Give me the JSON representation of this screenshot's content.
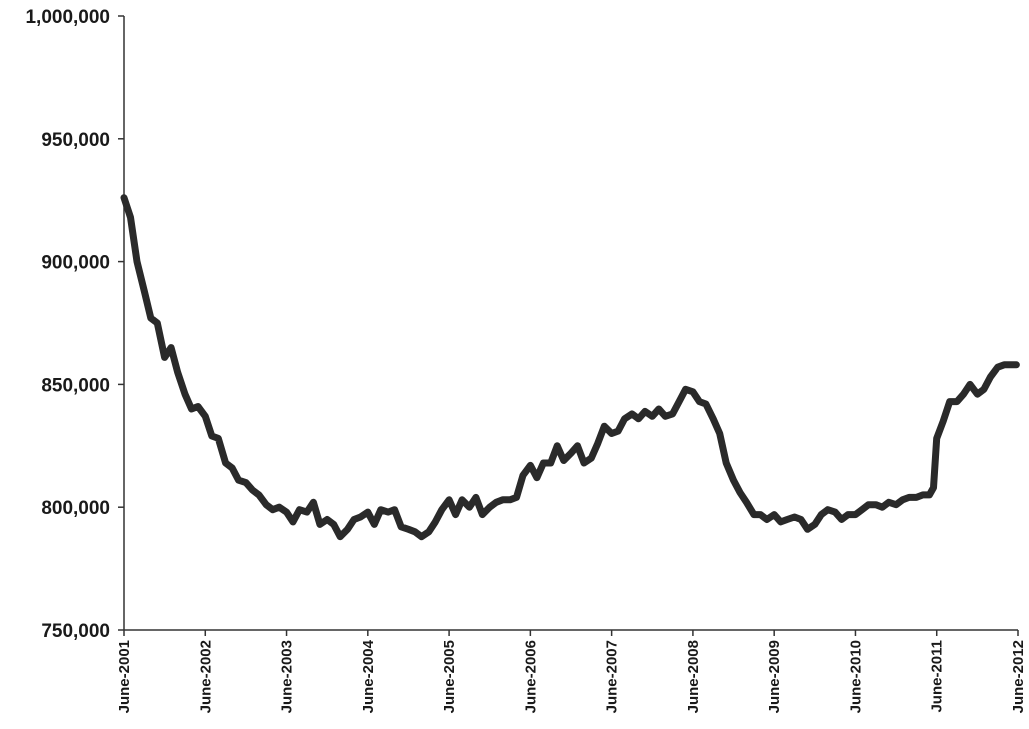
{
  "chart_data": {
    "type": "line",
    "title": "",
    "xlabel": "",
    "ylabel": "",
    "ylim": [
      750000,
      1000000
    ],
    "grid": false,
    "legend": "none",
    "line_color": "#2a2a2a",
    "y_ticks": [
      {
        "value": 750000,
        "label": "750,000"
      },
      {
        "value": 800000,
        "label": "800,000"
      },
      {
        "value": 850000,
        "label": "850,000"
      },
      {
        "value": 900000,
        "label": "900,000"
      },
      {
        "value": 950000,
        "label": "950,000"
      },
      {
        "value": 1000000,
        "label": "1,000,000"
      }
    ],
    "x_ticks": [
      {
        "value": 2001.42,
        "label": "June-2001"
      },
      {
        "value": 2002.42,
        "label": "June-2002"
      },
      {
        "value": 2003.42,
        "label": "June-2003"
      },
      {
        "value": 2004.42,
        "label": "June-2004"
      },
      {
        "value": 2005.42,
        "label": "June-2005"
      },
      {
        "value": 2006.42,
        "label": "June-2006"
      },
      {
        "value": 2007.42,
        "label": "June-2007"
      },
      {
        "value": 2008.42,
        "label": "June-2008"
      },
      {
        "value": 2009.42,
        "label": "June-2009"
      },
      {
        "value": 2010.42,
        "label": "June-2010"
      },
      {
        "value": 2011.42,
        "label": "June-2011"
      },
      {
        "value": 2012.42,
        "label": "June-2012"
      }
    ],
    "xlim": [
      2001.42,
      2012.42
    ],
    "series": [
      {
        "points": [
          [
            2001.42,
            926000
          ],
          [
            2001.5,
            918000
          ],
          [
            2001.58,
            900000
          ],
          [
            2001.67,
            888000
          ],
          [
            2001.75,
            877000
          ],
          [
            2001.83,
            875000
          ],
          [
            2001.92,
            861000
          ],
          [
            2002.0,
            865000
          ],
          [
            2002.08,
            855000
          ],
          [
            2002.17,
            846000
          ],
          [
            2002.25,
            840000
          ],
          [
            2002.33,
            841000
          ],
          [
            2002.42,
            837000
          ],
          [
            2002.5,
            829000
          ],
          [
            2002.58,
            828000
          ],
          [
            2002.67,
            818000
          ],
          [
            2002.75,
            816000
          ],
          [
            2002.83,
            811000
          ],
          [
            2002.92,
            810000
          ],
          [
            2003.0,
            807000
          ],
          [
            2003.08,
            805000
          ],
          [
            2003.17,
            801000
          ],
          [
            2003.25,
            799000
          ],
          [
            2003.33,
            800000
          ],
          [
            2003.42,
            798000
          ],
          [
            2003.5,
            794000
          ],
          [
            2003.58,
            799000
          ],
          [
            2003.67,
            798000
          ],
          [
            2003.75,
            802000
          ],
          [
            2003.83,
            793000
          ],
          [
            2003.92,
            795000
          ],
          [
            2004.0,
            793000
          ],
          [
            2004.08,
            788000
          ],
          [
            2004.17,
            791000
          ],
          [
            2004.25,
            795000
          ],
          [
            2004.33,
            796000
          ],
          [
            2004.42,
            798000
          ],
          [
            2004.5,
            793000
          ],
          [
            2004.58,
            799000
          ],
          [
            2004.67,
            798000
          ],
          [
            2004.75,
            799000
          ],
          [
            2004.83,
            792000
          ],
          [
            2004.92,
            791000
          ],
          [
            2005.0,
            790000
          ],
          [
            2005.08,
            788000
          ],
          [
            2005.17,
            790000
          ],
          [
            2005.25,
            794000
          ],
          [
            2005.33,
            799000
          ],
          [
            2005.42,
            803000
          ],
          [
            2005.5,
            797000
          ],
          [
            2005.58,
            803000
          ],
          [
            2005.67,
            800000
          ],
          [
            2005.75,
            804000
          ],
          [
            2005.83,
            797000
          ],
          [
            2005.92,
            800000
          ],
          [
            2006.0,
            802000
          ],
          [
            2006.08,
            803000
          ],
          [
            2006.17,
            803000
          ],
          [
            2006.25,
            804000
          ],
          [
            2006.33,
            813000
          ],
          [
            2006.42,
            817000
          ],
          [
            2006.5,
            812000
          ],
          [
            2006.58,
            818000
          ],
          [
            2006.67,
            818000
          ],
          [
            2006.75,
            825000
          ],
          [
            2006.83,
            819000
          ],
          [
            2006.92,
            822000
          ],
          [
            2007.0,
            825000
          ],
          [
            2007.08,
            818000
          ],
          [
            2007.17,
            820000
          ],
          [
            2007.25,
            826000
          ],
          [
            2007.33,
            833000
          ],
          [
            2007.42,
            830000
          ],
          [
            2007.5,
            831000
          ],
          [
            2007.58,
            836000
          ],
          [
            2007.67,
            838000
          ],
          [
            2007.75,
            836000
          ],
          [
            2007.83,
            839000
          ],
          [
            2007.92,
            837000
          ],
          [
            2008.0,
            840000
          ],
          [
            2008.08,
            837000
          ],
          [
            2008.17,
            838000
          ],
          [
            2008.25,
            843000
          ],
          [
            2008.33,
            848000
          ],
          [
            2008.42,
            847000
          ],
          [
            2008.5,
            843000
          ],
          [
            2008.58,
            842000
          ],
          [
            2008.67,
            836000
          ],
          [
            2008.75,
            830000
          ],
          [
            2008.83,
            818000
          ],
          [
            2008.92,
            811000
          ],
          [
            2009.0,
            806000
          ],
          [
            2009.08,
            802000
          ],
          [
            2009.17,
            797000
          ],
          [
            2009.25,
            797000
          ],
          [
            2009.33,
            795000
          ],
          [
            2009.42,
            797000
          ],
          [
            2009.5,
            794000
          ],
          [
            2009.58,
            795000
          ],
          [
            2009.67,
            796000
          ],
          [
            2009.75,
            795000
          ],
          [
            2009.83,
            791000
          ],
          [
            2009.92,
            793000
          ],
          [
            2010.0,
            797000
          ],
          [
            2010.08,
            799000
          ],
          [
            2010.17,
            798000
          ],
          [
            2010.25,
            795000
          ],
          [
            2010.33,
            797000
          ],
          [
            2010.42,
            797000
          ],
          [
            2010.5,
            799000
          ],
          [
            2010.58,
            801000
          ],
          [
            2010.67,
            801000
          ],
          [
            2010.75,
            800000
          ],
          [
            2010.83,
            802000
          ],
          [
            2010.92,
            801000
          ],
          [
            2011.0,
            803000
          ],
          [
            2011.08,
            804000
          ],
          [
            2011.17,
            804000
          ],
          [
            2011.25,
            805000
          ],
          [
            2011.33,
            805000
          ],
          [
            2011.38,
            808000
          ],
          [
            2011.42,
            828000
          ],
          [
            2011.5,
            835000
          ],
          [
            2011.58,
            843000
          ],
          [
            2011.67,
            843000
          ],
          [
            2011.75,
            846000
          ],
          [
            2011.83,
            850000
          ],
          [
            2011.92,
            846000
          ],
          [
            2012.0,
            848000
          ],
          [
            2012.08,
            853000
          ],
          [
            2012.17,
            857000
          ],
          [
            2012.25,
            858000
          ],
          [
            2012.33,
            858000
          ],
          [
            2012.4,
            858000
          ]
        ]
      }
    ]
  }
}
